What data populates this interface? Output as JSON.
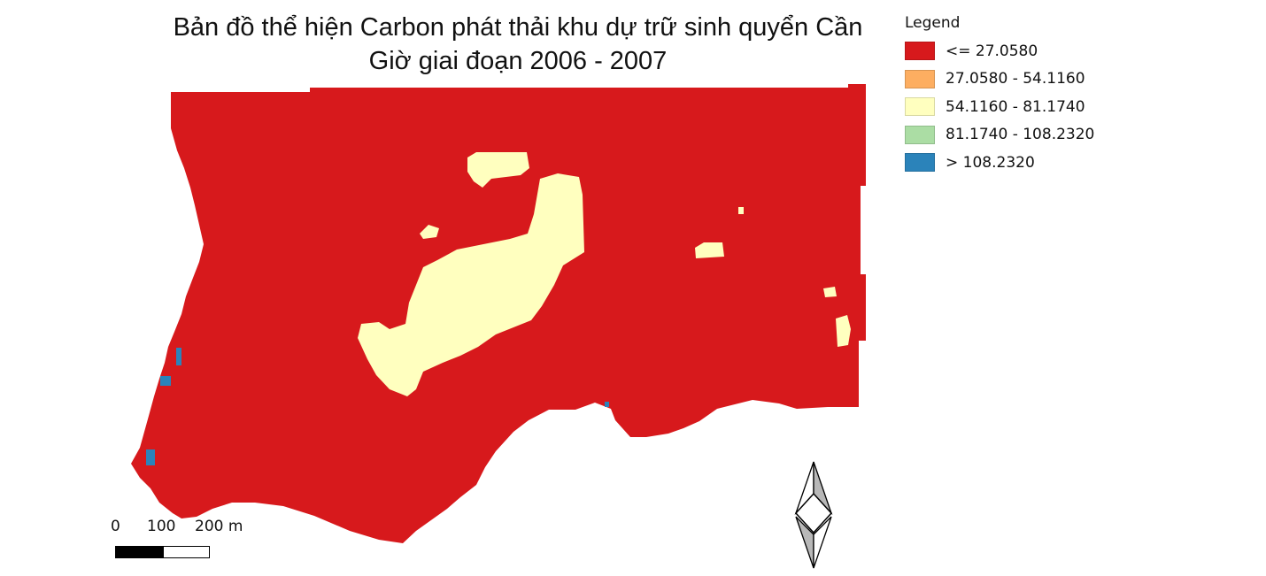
{
  "map": {
    "title_line1": "Bản đồ thể hiện Carbon phát thải khu dự trữ sinh quyển Cần",
    "title_line2": "Giờ giai đoạn 2006 - 2007"
  },
  "legend": {
    "title": "Legend",
    "items": [
      {
        "label": "<= 27.0580",
        "color": "#d7191c"
      },
      {
        "label": "27.0580 - 54.1160",
        "color": "#fdae61"
      },
      {
        "label": "54.1160 - 81.1740",
        "color": "#ffffbf"
      },
      {
        "label": "81.1740 - 108.2320",
        "color": "#abdda4"
      },
      {
        "label": "> 108.2320",
        "color": "#2b83ba"
      }
    ]
  },
  "scale_bar": {
    "labels": [
      "0",
      "100",
      "200 m"
    ]
  },
  "north_arrow": {
    "icon": "north-arrow-icon"
  }
}
